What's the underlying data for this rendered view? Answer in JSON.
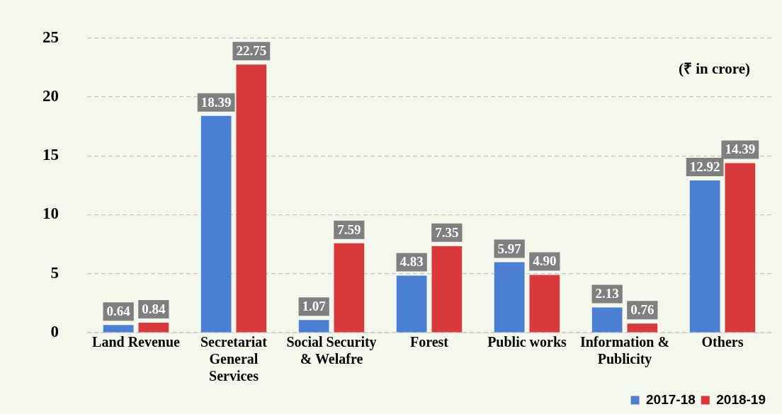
{
  "chart_data": {
    "type": "bar",
    "categories": [
      "Land Revenue",
      "Secretariat General Services",
      "Social Security & Welafre",
      "Forest",
      "Public works",
      "Information & Publicity",
      "Others"
    ],
    "series": [
      {
        "name": "2017-18",
        "color": "#4a7fd4",
        "values": [
          0.64,
          18.39,
          1.07,
          4.83,
          5.97,
          2.13,
          12.92
        ],
        "value_labels": [
          "0.64",
          "18.39",
          "1.07",
          "4.83",
          "5.97",
          "2.13",
          "12.92"
        ]
      },
      {
        "name": "2018-19",
        "color": "#d8393b",
        "values": [
          0.84,
          22.75,
          7.59,
          7.35,
          4.9,
          0.76,
          14.39
        ],
        "value_labels": [
          "0.84",
          "22.75",
          "7.59",
          "7.35",
          "4.90",
          "0.76",
          "14.39"
        ]
      }
    ],
    "ylim": [
      0,
      25
    ],
    "yticks": [
      0,
      5,
      10,
      15,
      20,
      25
    ],
    "grid": "y",
    "legend": "bottom right",
    "annotations": [
      "(₹ in crore)"
    ]
  }
}
